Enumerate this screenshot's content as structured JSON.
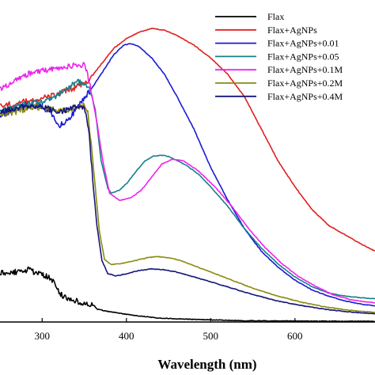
{
  "chart_data": {
    "type": "line",
    "title": "",
    "xlabel": "Wavelength (nm)",
    "ylabel": "",
    "xlim": [
      250,
      695
    ],
    "ylim": [
      0,
      1
    ],
    "x_ticks": [
      300,
      400,
      500,
      600
    ],
    "grid": false,
    "legend_position": "top-right",
    "series": [
      {
        "name": "Flax",
        "color": "#000000",
        "points": [
          [
            250,
            0.152
          ],
          [
            270,
            0.156
          ],
          [
            283,
            0.163
          ],
          [
            295,
            0.15
          ],
          [
            305,
            0.143
          ],
          [
            313,
            0.13
          ],
          [
            318,
            0.1
          ],
          [
            325,
            0.08
          ],
          [
            340,
            0.065
          ],
          [
            355,
            0.054
          ],
          [
            362,
            0.05
          ],
          [
            365,
            0.04
          ],
          [
            375,
            0.034
          ],
          [
            390,
            0.028
          ],
          [
            410,
            0.02
          ],
          [
            440,
            0.012
          ],
          [
            480,
            0.008
          ],
          [
            540,
            0.004
          ],
          [
            600,
            0.003
          ],
          [
            695,
            0.002
          ]
        ]
      },
      {
        "name": "Flax+AgNPs",
        "color": "#e02020",
        "points": [
          [
            250,
            0.67
          ],
          [
            270,
            0.68
          ],
          [
            290,
            0.69
          ],
          [
            310,
            0.7
          ],
          [
            330,
            0.718
          ],
          [
            345,
            0.735
          ],
          [
            355,
            0.75
          ],
          [
            370,
            0.8
          ],
          [
            385,
            0.85
          ],
          [
            400,
            0.88
          ],
          [
            415,
            0.9
          ],
          [
            430,
            0.912
          ],
          [
            445,
            0.906
          ],
          [
            460,
            0.89
          ],
          [
            480,
            0.86
          ],
          [
            500,
            0.82
          ],
          [
            520,
            0.77
          ],
          [
            540,
            0.7
          ],
          [
            560,
            0.6
          ],
          [
            580,
            0.5
          ],
          [
            600,
            0.42
          ],
          [
            620,
            0.35
          ],
          [
            640,
            0.3
          ],
          [
            660,
            0.27
          ],
          [
            680,
            0.24
          ],
          [
            695,
            0.22
          ]
        ]
      },
      {
        "name": "Flax+AgNPs+0.01",
        "color": "#1a1ad6",
        "points": [
          [
            250,
            0.64
          ],
          [
            260,
            0.65
          ],
          [
            275,
            0.668
          ],
          [
            285,
            0.675
          ],
          [
            300,
            0.67
          ],
          [
            312,
            0.645
          ],
          [
            320,
            0.61
          ],
          [
            330,
            0.625
          ],
          [
            340,
            0.66
          ],
          [
            350,
            0.695
          ],
          [
            360,
            0.73
          ],
          [
            370,
            0.77
          ],
          [
            385,
            0.83
          ],
          [
            397,
            0.86
          ],
          [
            405,
            0.865
          ],
          [
            415,
            0.855
          ],
          [
            430,
            0.82
          ],
          [
            445,
            0.77
          ],
          [
            460,
            0.7
          ],
          [
            480,
            0.6
          ],
          [
            500,
            0.48
          ],
          [
            520,
            0.38
          ],
          [
            540,
            0.29
          ],
          [
            560,
            0.22
          ],
          [
            580,
            0.17
          ],
          [
            600,
            0.13
          ],
          [
            620,
            0.1
          ],
          [
            640,
            0.08
          ],
          [
            660,
            0.065
          ],
          [
            680,
            0.055
          ],
          [
            695,
            0.05
          ]
        ]
      },
      {
        "name": "Flax+AgNPs+0.05",
        "color": "#17808a",
        "points": [
          [
            250,
            0.655
          ],
          [
            265,
            0.665
          ],
          [
            280,
            0.675
          ],
          [
            295,
            0.68
          ],
          [
            310,
            0.69
          ],
          [
            320,
            0.71
          ],
          [
            332,
            0.73
          ],
          [
            342,
            0.745
          ],
          [
            350,
            0.742
          ],
          [
            357,
            0.72
          ],
          [
            363,
            0.66
          ],
          [
            370,
            0.5
          ],
          [
            378,
            0.415
          ],
          [
            382,
            0.4
          ],
          [
            392,
            0.41
          ],
          [
            402,
            0.435
          ],
          [
            412,
            0.47
          ],
          [
            422,
            0.5
          ],
          [
            432,
            0.515
          ],
          [
            442,
            0.518
          ],
          [
            450,
            0.514
          ],
          [
            460,
            0.502
          ],
          [
            472,
            0.485
          ],
          [
            485,
            0.46
          ],
          [
            500,
            0.42
          ],
          [
            520,
            0.36
          ],
          [
            540,
            0.29
          ],
          [
            560,
            0.23
          ],
          [
            580,
            0.18
          ],
          [
            600,
            0.14
          ],
          [
            620,
            0.11
          ],
          [
            640,
            0.09
          ],
          [
            660,
            0.08
          ],
          [
            680,
            0.075
          ],
          [
            695,
            0.072
          ]
        ]
      },
      {
        "name": "Flax+AgNPs+0.1M",
        "color": "#ee22ee",
        "points": [
          [
            250,
            0.725
          ],
          [
            262,
            0.74
          ],
          [
            272,
            0.758
          ],
          [
            285,
            0.772
          ],
          [
            300,
            0.78
          ],
          [
            315,
            0.786
          ],
          [
            325,
            0.79
          ],
          [
            335,
            0.795
          ],
          [
            343,
            0.798
          ],
          [
            349,
            0.8
          ],
          [
            353,
            0.78
          ],
          [
            358,
            0.72
          ],
          [
            365,
            0.62
          ],
          [
            372,
            0.5
          ],
          [
            380,
            0.4
          ],
          [
            392,
            0.378
          ],
          [
            405,
            0.385
          ],
          [
            418,
            0.41
          ],
          [
            430,
            0.45
          ],
          [
            442,
            0.49
          ],
          [
            455,
            0.506
          ],
          [
            468,
            0.5
          ],
          [
            485,
            0.47
          ],
          [
            505,
            0.42
          ],
          [
            525,
            0.36
          ],
          [
            545,
            0.29
          ],
          [
            565,
            0.23
          ],
          [
            585,
            0.18
          ],
          [
            605,
            0.14
          ],
          [
            625,
            0.11
          ],
          [
            645,
            0.085
          ],
          [
            665,
            0.07
          ],
          [
            685,
            0.062
          ],
          [
            695,
            0.06
          ]
        ]
      },
      {
        "name": "Flax+AgNPs+0.2M",
        "color": "#8a8a12",
        "points": [
          [
            250,
            0.64
          ],
          [
            265,
            0.65
          ],
          [
            280,
            0.66
          ],
          [
            293,
            0.668
          ],
          [
            305,
            0.665
          ],
          [
            316,
            0.66
          ],
          [
            326,
            0.658
          ],
          [
            336,
            0.662
          ],
          [
            344,
            0.67
          ],
          [
            350,
            0.672
          ],
          [
            354,
            0.65
          ],
          [
            358,
            0.56
          ],
          [
            363,
            0.42
          ],
          [
            368,
            0.28
          ],
          [
            374,
            0.195
          ],
          [
            382,
            0.178
          ],
          [
            395,
            0.182
          ],
          [
            410,
            0.19
          ],
          [
            425,
            0.2
          ],
          [
            437,
            0.203
          ],
          [
            450,
            0.2
          ],
          [
            465,
            0.19
          ],
          [
            485,
            0.17
          ],
          [
            505,
            0.15
          ],
          [
            525,
            0.13
          ],
          [
            550,
            0.105
          ],
          [
            580,
            0.08
          ],
          [
            610,
            0.06
          ],
          [
            640,
            0.045
          ],
          [
            670,
            0.035
          ],
          [
            695,
            0.03
          ]
        ]
      },
      {
        "name": "Flax+AgNPs+0.4M",
        "color": "#16167a",
        "points": [
          [
            250,
            0.65
          ],
          [
            262,
            0.66
          ],
          [
            275,
            0.668
          ],
          [
            287,
            0.672
          ],
          [
            298,
            0.67
          ],
          [
            310,
            0.66
          ],
          [
            320,
            0.653
          ],
          [
            330,
            0.66
          ],
          [
            340,
            0.668
          ],
          [
            347,
            0.672
          ],
          [
            352,
            0.655
          ],
          [
            356,
            0.58
          ],
          [
            360,
            0.44
          ],
          [
            365,
            0.3
          ],
          [
            371,
            0.19
          ],
          [
            378,
            0.15
          ],
          [
            388,
            0.143
          ],
          [
            400,
            0.15
          ],
          [
            415,
            0.16
          ],
          [
            430,
            0.165
          ],
          [
            445,
            0.162
          ],
          [
            460,
            0.155
          ],
          [
            480,
            0.14
          ],
          [
            500,
            0.125
          ],
          [
            525,
            0.105
          ],
          [
            550,
            0.085
          ],
          [
            580,
            0.065
          ],
          [
            610,
            0.05
          ],
          [
            640,
            0.038
          ],
          [
            670,
            0.03
          ],
          [
            695,
            0.026
          ]
        ]
      }
    ]
  }
}
